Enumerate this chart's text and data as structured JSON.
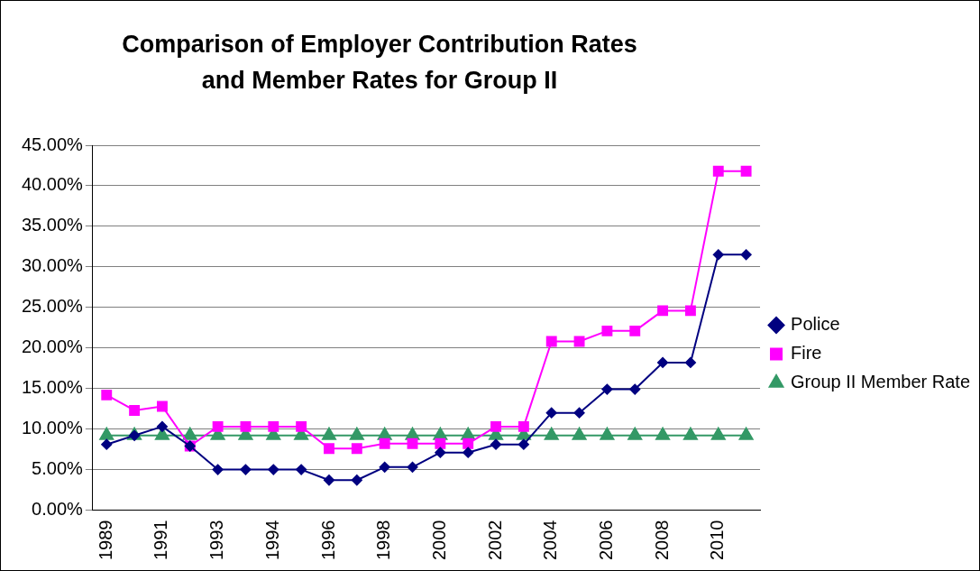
{
  "chart_data": {
    "type": "line",
    "title": "Comparison of Employer Contribution Rates and Member Rates for Group II",
    "categories": [
      "1989",
      null,
      "1991",
      null,
      "1993",
      null,
      "1994",
      null,
      "1996",
      null,
      "1998",
      null,
      "2000",
      null,
      "2002",
      null,
      "2004",
      null,
      "2006",
      null,
      "2008",
      null,
      "2010",
      null
    ],
    "series": [
      {
        "name": "Police",
        "color": "#000080",
        "marker": "diamond",
        "values": [
          8.1,
          9.2,
          10.3,
          7.9,
          5.0,
          5.0,
          5.0,
          5.0,
          3.7,
          3.7,
          5.3,
          5.3,
          7.1,
          7.1,
          8.1,
          8.1,
          12.0,
          12.0,
          14.9,
          14.9,
          18.2,
          18.2,
          31.5,
          31.5
        ]
      },
      {
        "name": "Fire",
        "color": "#ff00ff",
        "marker": "square",
        "values": [
          14.2,
          12.3,
          12.8,
          7.9,
          10.3,
          10.3,
          10.3,
          10.3,
          7.6,
          7.6,
          8.2,
          8.2,
          8.2,
          8.2,
          10.3,
          10.3,
          20.8,
          20.8,
          22.1,
          22.1,
          24.6,
          24.6,
          41.8,
          41.8
        ]
      },
      {
        "name": "Group II Member Rate",
        "color": "#339966",
        "marker": "triangle",
        "values": [
          9.2,
          9.2,
          9.2,
          9.2,
          9.2,
          9.2,
          9.2,
          9.2,
          9.2,
          9.2,
          9.2,
          9.2,
          9.2,
          9.2,
          9.2,
          9.2,
          9.2,
          9.2,
          9.2,
          9.2,
          9.2,
          9.2,
          9.2,
          9.2
        ]
      }
    ],
    "ylim": [
      0,
      45
    ],
    "yticks": [
      {
        "value": 0,
        "label": "0.00%"
      },
      {
        "value": 5,
        "label": "5.00%"
      },
      {
        "value": 10,
        "label": "10.00%"
      },
      {
        "value": 15,
        "label": "15.00%"
      },
      {
        "value": 20,
        "label": "20.00%"
      },
      {
        "value": 25,
        "label": "25.00%"
      },
      {
        "value": 30,
        "label": "30.00%"
      },
      {
        "value": 35,
        "label": "35.00%"
      },
      {
        "value": 40,
        "label": "40.00%"
      },
      {
        "value": 45,
        "label": "45.00%"
      }
    ],
    "grid": "y",
    "legend": "right",
    "line_style": "solid"
  }
}
